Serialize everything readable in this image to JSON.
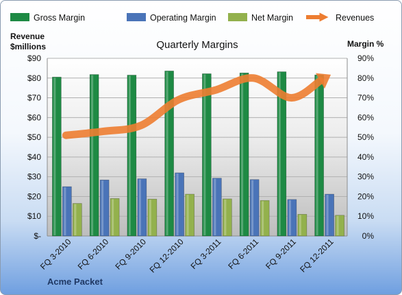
{
  "chart_data": {
    "type": "bar",
    "title": "Quarterly Margins",
    "company": "Acme Packet",
    "categories": [
      "FQ 3-2010",
      "FQ 6-2010",
      "FQ 9-2010",
      "FQ 12-2010",
      "FQ 3-2011",
      "FQ 6-2011",
      "FQ 9-2011",
      "FQ 12-2011"
    ],
    "y_left": {
      "label_line1": "Revenue",
      "label_line2": "$millions",
      "range": [
        0,
        90
      ],
      "ticks": [
        "$-",
        "$10",
        "$20",
        "$30",
        "$40",
        "$50",
        "$60",
        "$70",
        "$80",
        "$90"
      ]
    },
    "y_right": {
      "label": "Margin %",
      "range": [
        0,
        90
      ],
      "ticks": [
        "0%",
        "10%",
        "20%",
        "30%",
        "40%",
        "50%",
        "60%",
        "70%",
        "80%",
        "90%"
      ]
    },
    "series": [
      {
        "name": "Gross Margin",
        "kind": "bar",
        "axis": "right",
        "color": "#1e8a44",
        "values": [
          80.5,
          81.8,
          81.5,
          83.6,
          82.2,
          82.6,
          83.2,
          81.6
        ]
      },
      {
        "name": "Operating Margin",
        "kind": "bar",
        "axis": "right",
        "color": "#4a74b8",
        "values": [
          25.0,
          28.4,
          29.0,
          32.0,
          29.3,
          28.6,
          18.5,
          21.2
        ]
      },
      {
        "name": "Net Margin",
        "kind": "bar",
        "axis": "right",
        "color": "#93b14d",
        "values": [
          16.5,
          19.0,
          18.7,
          21.2,
          18.8,
          18.0,
          11.0,
          10.5
        ]
      },
      {
        "name": "Revenues",
        "kind": "line",
        "axis": "left",
        "color": "#ed7d31",
        "values": [
          51,
          53,
          56,
          69,
          74,
          80,
          70,
          81
        ]
      }
    ],
    "grid": true,
    "legend_position": "top"
  }
}
